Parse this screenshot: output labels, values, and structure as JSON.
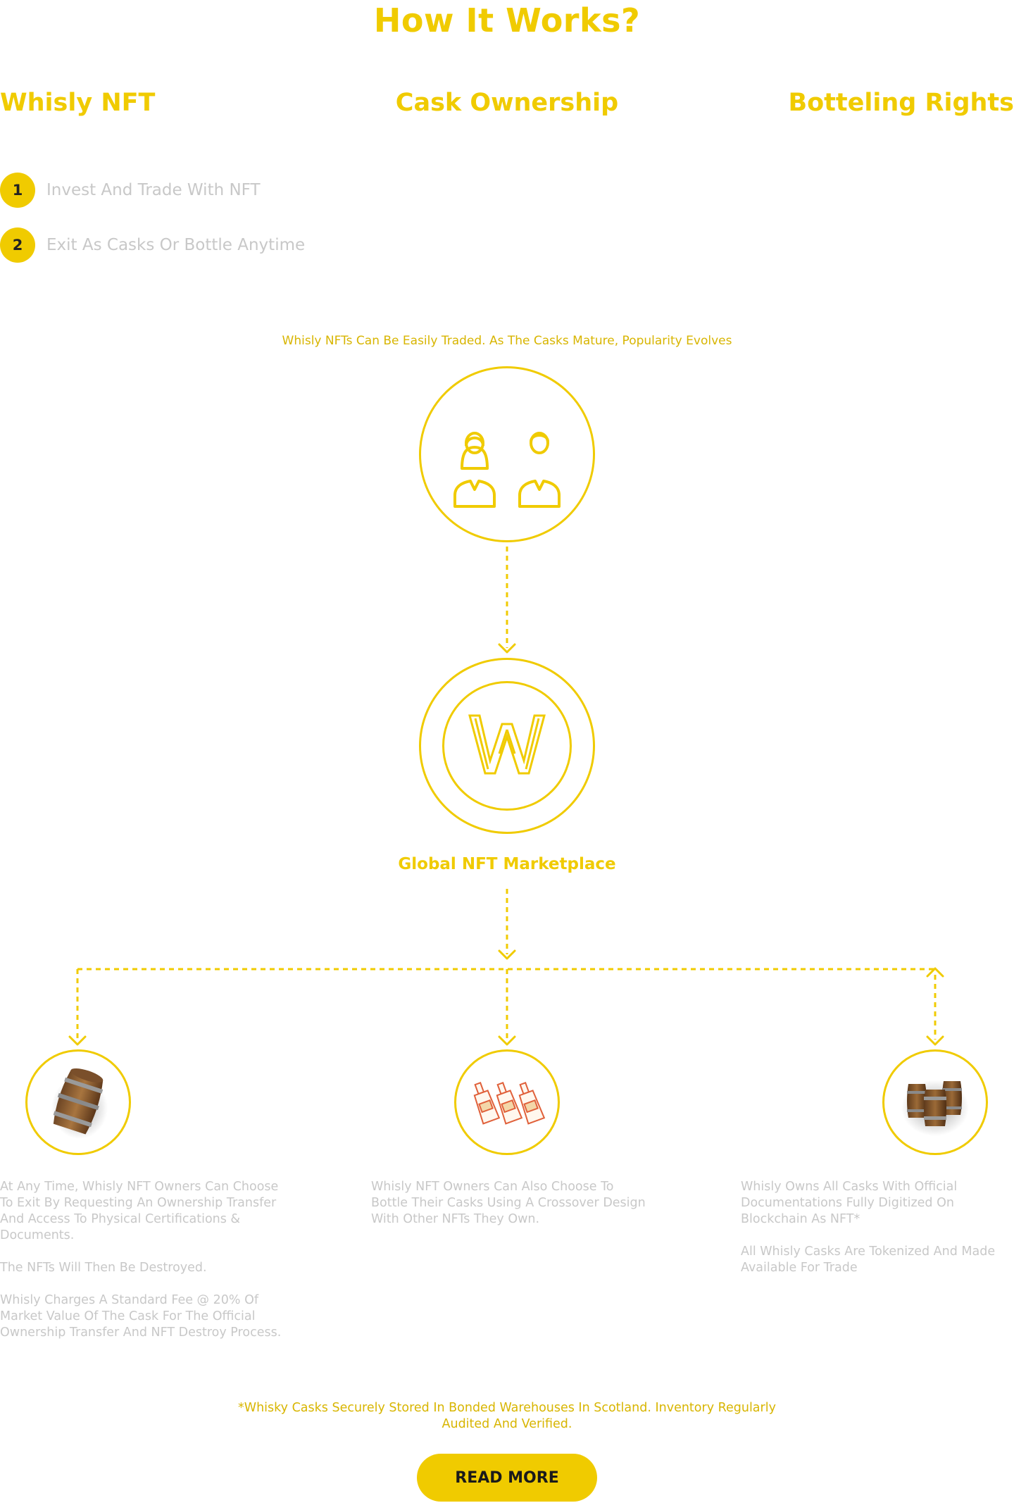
{
  "header": {
    "title": "How It Works?"
  },
  "tabs": [
    {
      "label": "Whisly NFT"
    },
    {
      "label": "Cask Ownership"
    },
    {
      "label": "Botteling Rights"
    }
  ],
  "steps": [
    {
      "number": "1",
      "label": "Invest And Trade With NFT"
    },
    {
      "number": "2",
      "label": "Exit As Casks Or Bottle Anytime"
    }
  ],
  "diagram": {
    "caption": "Whisly NFTs Can Be Easily Traded. As The Casks Mature, Popularity Evolves",
    "marketplace_label": "Global NFT Marketplace",
    "icons": {
      "users": "users-icon",
      "logo": "whisly-w-logo-icon",
      "cask": "barrel-icon",
      "bottles": "bottles-icon",
      "casks": "barrels-icon"
    }
  },
  "columns": [
    {
      "paragraphs": [
        "At Any Time, Whisly NFT Owners Can Choose To Exit By Requesting An Ownership Transfer And Access To Physical Certifications & Documents.",
        "The NFTs Will Then Be Destroyed.",
        "Whisly Charges A Standard Fee @ 20% Of Market Value Of The Cask For The Official Ownership Transfer And NFT Destroy Process."
      ]
    },
    {
      "paragraphs": [
        "Whisly NFT Owners Can Also Choose To Bottle Their Casks Using A Crossover Design With Other NFTs They Own."
      ]
    },
    {
      "paragraphs": [
        "Whisly Owns All Casks With Official Documentations Fully Digitized On Blockchain As NFT*",
        "All Whisly Casks Are Tokenized And Made Available For Trade"
      ]
    }
  ],
  "footnote": {
    "line1": "*Whisky Casks Securely Stored In Bonded Warehouses In Scotland. Inventory Regularly",
    "line2": "Audited And Verified."
  },
  "cta": {
    "label": "READ MORE"
  },
  "colors": {
    "accent": "#f0cb00",
    "muted_text": "#c8c8c8",
    "caption_text": "#d8b500"
  }
}
